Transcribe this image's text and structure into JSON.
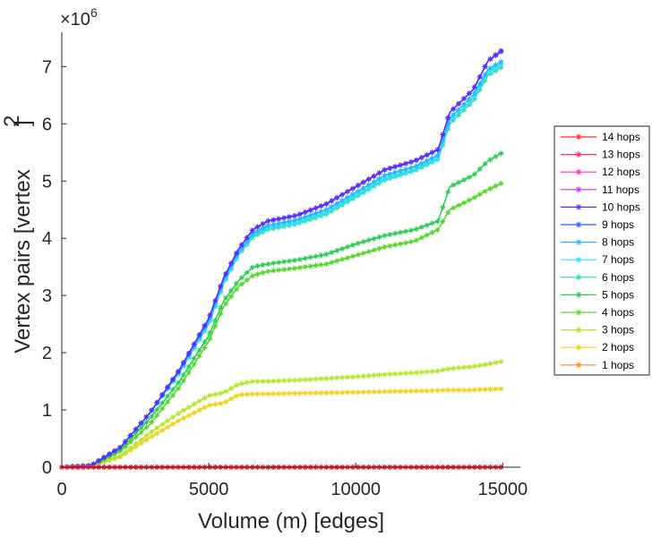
{
  "chart_data": {
    "type": "line",
    "title": "",
    "xlabel": "Volume (m) [edges]",
    "ylabel_text": "Vertex pairs [vertex",
    "ylabel_exponent": "2",
    "ylabel_close": "]",
    "xlim": [
      0,
      15600
    ],
    "ylim": [
      0,
      7.6
    ],
    "y_multiplier_base": "×10",
    "y_multiplier_exp": "6",
    "xticks": [
      0,
      5000,
      10000,
      15000
    ],
    "xtick_labels": [
      "0",
      "5000",
      "10000",
      "15000"
    ],
    "yticks": [
      0,
      1,
      2,
      3,
      4,
      5,
      6,
      7
    ],
    "ytick_labels": [
      "0",
      "1",
      "2",
      "3",
      "4",
      "5",
      "6",
      "7"
    ],
    "grid": false,
    "legend_position": "right",
    "x": [
      0,
      1000,
      2000,
      3000,
      4000,
      5000,
      5500,
      6000,
      6500,
      7000,
      8000,
      9000,
      10000,
      11000,
      12000,
      12800,
      13200,
      14000,
      14500,
      15000
    ],
    "series": [
      {
        "name": "14 hops",
        "color": "#ff2a2a",
        "values": [
          0,
          0,
          0,
          0,
          0,
          0,
          0,
          0,
          0,
          0,
          0,
          0,
          0,
          0,
          0,
          0,
          0,
          0,
          0,
          0
        ]
      },
      {
        "name": "13 hops",
        "color": "#ff2a7a",
        "values": [
          0,
          0,
          0,
          0,
          0,
          0,
          0,
          0,
          0,
          0,
          0,
          0,
          0,
          0,
          0,
          0,
          0,
          0,
          0,
          0
        ]
      },
      {
        "name": "12 hops",
        "color": "#ff33cc",
        "values": [
          0,
          0,
          0,
          0,
          0,
          0,
          0,
          0,
          0,
          0,
          0,
          0,
          0,
          0,
          0,
          0,
          0,
          0,
          0,
          0
        ]
      },
      {
        "name": "11 hops",
        "color": "#cc33ff",
        "values": [
          0,
          0,
          0,
          0,
          0,
          0,
          0,
          0,
          0,
          0,
          0,
          0,
          0,
          0,
          0,
          0,
          0,
          0,
          0,
          0
        ]
      },
      {
        "name": "10 hops",
        "color": "#5a2aff",
        "values": [
          0,
          0.03,
          0.35,
          0.95,
          1.7,
          2.6,
          3.3,
          3.8,
          4.15,
          4.3,
          4.4,
          4.6,
          4.9,
          5.2,
          5.35,
          5.55,
          6.2,
          6.6,
          7.1,
          7.3
        ]
      },
      {
        "name": "9 hops",
        "color": "#2a5aff",
        "values": [
          0,
          0.03,
          0.35,
          0.95,
          1.7,
          2.6,
          3.3,
          3.8,
          4.15,
          4.3,
          4.4,
          4.6,
          4.9,
          5.2,
          5.35,
          5.55,
          6.2,
          6.6,
          7.1,
          7.28
        ]
      },
      {
        "name": "8 hops",
        "color": "#2ab4ff",
        "values": [
          0,
          0.03,
          0.35,
          0.95,
          1.68,
          2.55,
          3.25,
          3.75,
          4.08,
          4.22,
          4.32,
          4.5,
          4.8,
          5.1,
          5.25,
          5.45,
          6.1,
          6.5,
          6.95,
          7.1
        ]
      },
      {
        "name": "7 hops",
        "color": "#2ae6ff",
        "values": [
          0,
          0.03,
          0.35,
          0.95,
          1.66,
          2.52,
          3.22,
          3.72,
          4.05,
          4.18,
          4.28,
          4.45,
          4.75,
          5.05,
          5.2,
          5.4,
          6.05,
          6.45,
          6.9,
          7.05
        ]
      },
      {
        "name": "6 hops",
        "color": "#2ae0a0",
        "values": [
          0,
          0.03,
          0.35,
          0.95,
          1.65,
          2.5,
          3.2,
          3.7,
          4.02,
          4.15,
          4.25,
          4.42,
          4.72,
          5.02,
          5.18,
          5.38,
          6.0,
          6.4,
          6.85,
          7.0
        ]
      },
      {
        "name": "5 hops",
        "color": "#2acc55",
        "values": [
          0,
          0.03,
          0.32,
          0.85,
          1.5,
          2.3,
          2.9,
          3.25,
          3.5,
          3.55,
          3.62,
          3.72,
          3.9,
          4.05,
          4.15,
          4.3,
          4.9,
          5.1,
          5.35,
          5.5
        ]
      },
      {
        "name": "4 hops",
        "color": "#55d62a",
        "values": [
          0,
          0.02,
          0.28,
          0.75,
          1.4,
          2.2,
          2.8,
          3.15,
          3.35,
          3.42,
          3.48,
          3.55,
          3.7,
          3.85,
          3.95,
          4.15,
          4.5,
          4.7,
          4.85,
          4.97
        ]
      },
      {
        "name": "3 hops",
        "color": "#b4e62a",
        "values": [
          0,
          0.02,
          0.2,
          0.6,
          0.95,
          1.25,
          1.3,
          1.45,
          1.5,
          1.5,
          1.52,
          1.55,
          1.58,
          1.62,
          1.65,
          1.68,
          1.72,
          1.76,
          1.8,
          1.85
        ]
      },
      {
        "name": "2 hops",
        "color": "#f0d21a",
        "values": [
          0,
          0.02,
          0.18,
          0.52,
          0.82,
          1.08,
          1.12,
          1.26,
          1.28,
          1.28,
          1.29,
          1.3,
          1.31,
          1.32,
          1.33,
          1.34,
          1.35,
          1.35,
          1.36,
          1.37
        ]
      },
      {
        "name": "1 hops",
        "color": "#ff8a2a",
        "values": [
          0,
          0,
          0,
          0,
          0,
          0,
          0,
          0,
          0,
          0,
          0,
          0,
          0,
          0,
          0,
          0,
          0,
          0,
          0,
          0
        ]
      }
    ]
  }
}
